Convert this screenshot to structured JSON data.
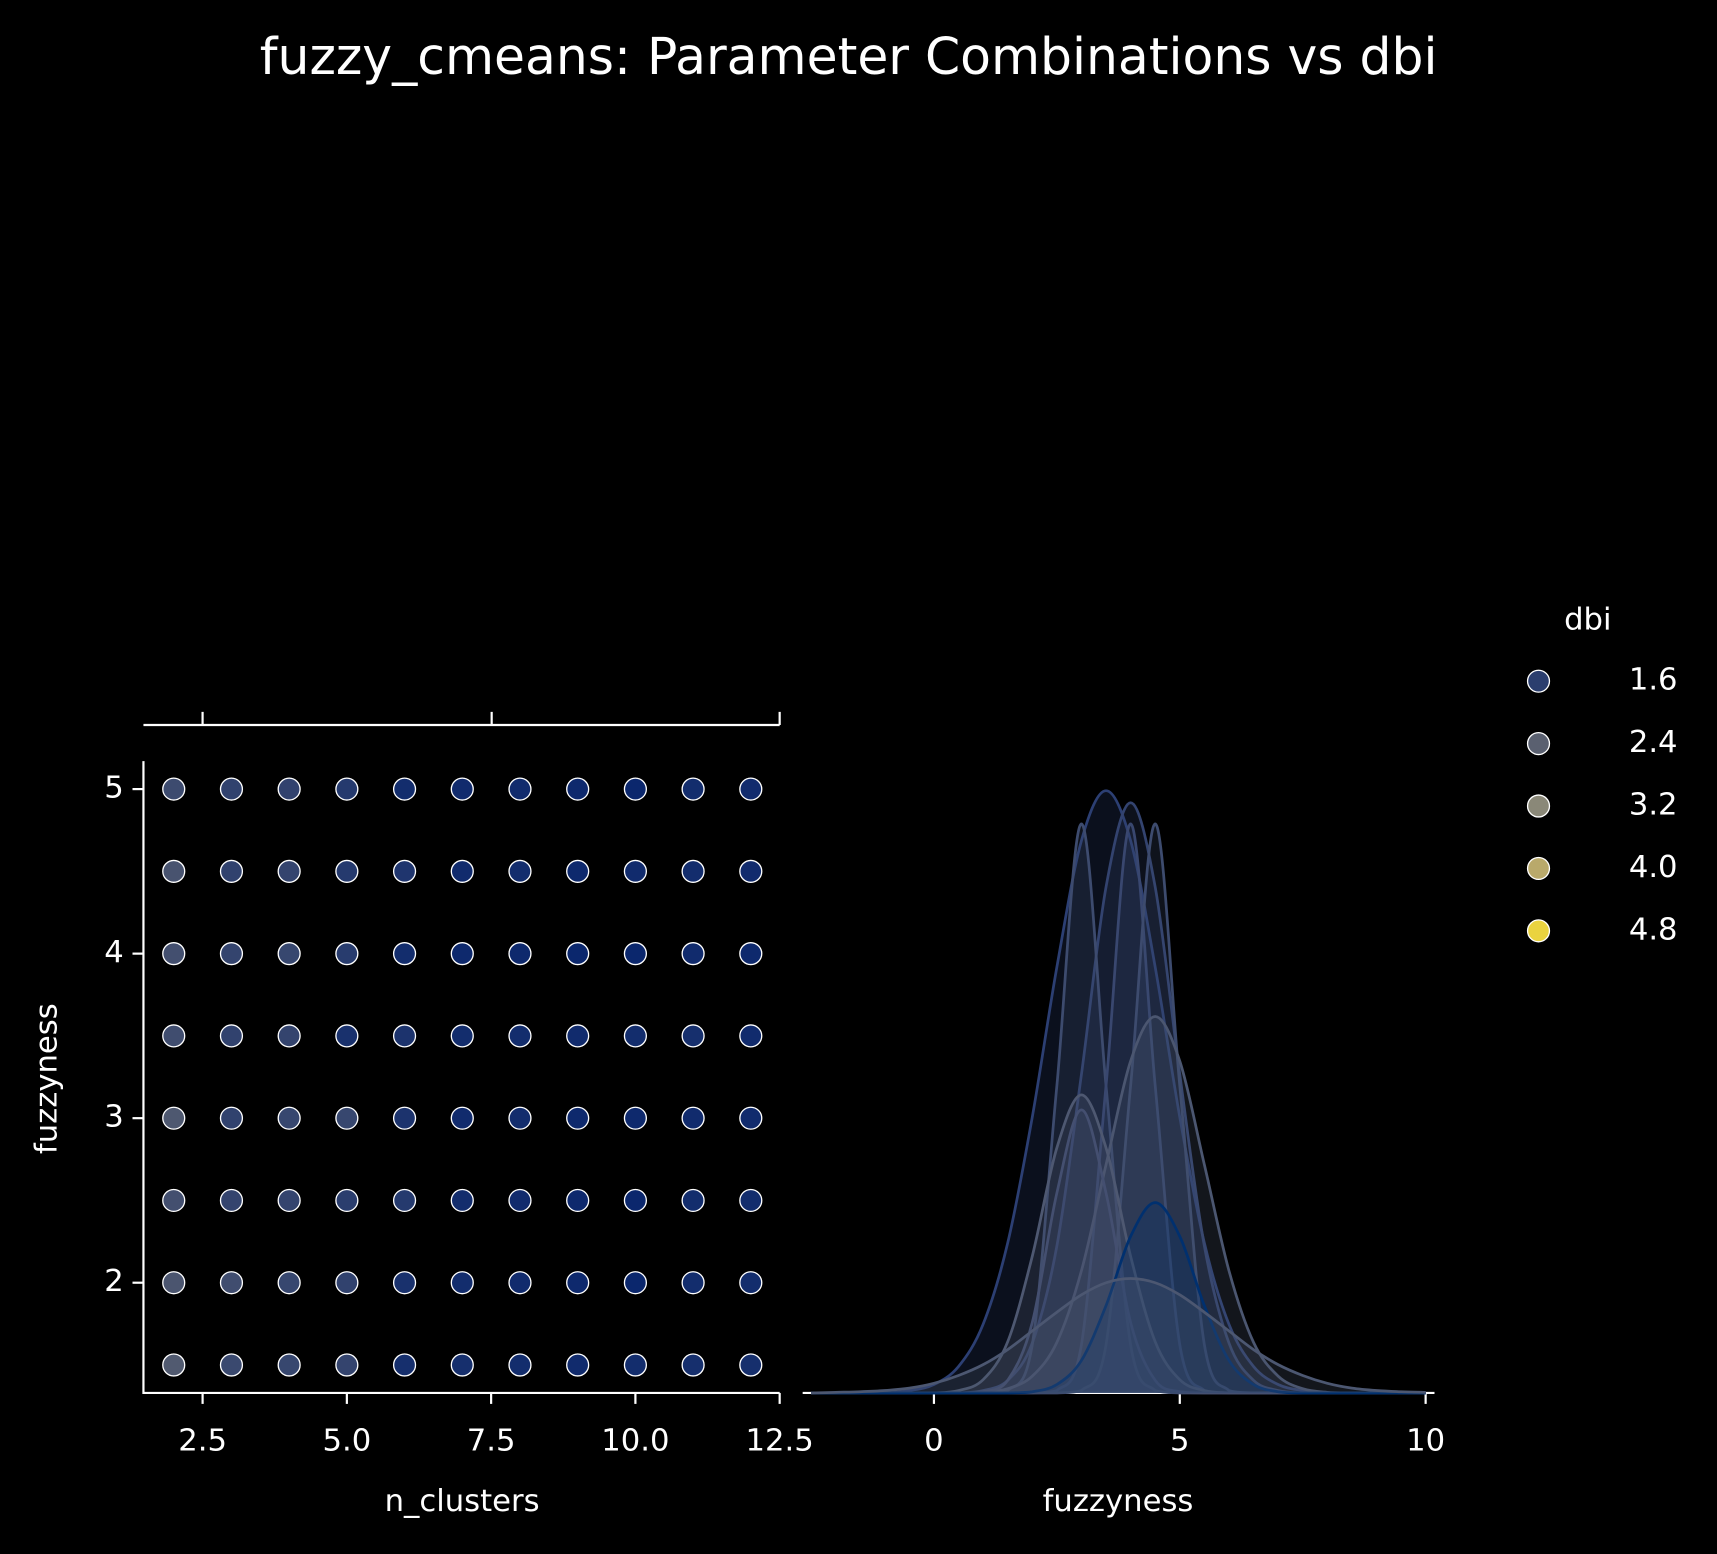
{
  "chart_data": [
    {
      "type": "scatter",
      "title": "fuzzy_cmeans: Parameter Combinations vs dbi",
      "x_label": "n_clusters",
      "y_label": "fuzzyness",
      "x": [
        2,
        3,
        4,
        5,
        6,
        7,
        8,
        9,
        10,
        11,
        12,
        2,
        3,
        4,
        5,
        6,
        7,
        8,
        9,
        10,
        11,
        12,
        2,
        3,
        4,
        5,
        6,
        7,
        8,
        9,
        10,
        11,
        12,
        2,
        3,
        4,
        5,
        6,
        7,
        8,
        9,
        10,
        11,
        12,
        2,
        3,
        4,
        5,
        6,
        7,
        8,
        9,
        10,
        11,
        12,
        2,
        3,
        4,
        5,
        6,
        7,
        8,
        9,
        10,
        11,
        12,
        2,
        3,
        4,
        5,
        6,
        7,
        8,
        9,
        10,
        11,
        12,
        2,
        3,
        4,
        5,
        6,
        7,
        8,
        9,
        10,
        11,
        12
      ],
      "y": [
        5,
        5,
        5,
        5,
        5,
        5,
        5,
        5,
        5,
        5,
        5,
        4.5,
        4.5,
        4.5,
        4.5,
        4.5,
        4.5,
        4.5,
        4.5,
        4.5,
        4.5,
        4.5,
        4,
        4,
        4,
        4,
        4,
        4,
        4,
        4,
        4,
        4,
        4,
        3.5,
        3.5,
        3.5,
        3.5,
        3.5,
        3.5,
        3.5,
        3.5,
        3.5,
        3.5,
        3.5,
        3,
        3,
        3,
        3,
        3,
        3,
        3,
        3,
        3,
        3,
        3,
        2.5,
        2.5,
        2.5,
        2.5,
        2.5,
        2.5,
        2.5,
        2.5,
        2.5,
        2.5,
        2.5,
        2,
        2,
        2,
        2,
        2,
        2,
        2,
        2,
        2,
        2,
        2,
        1.5,
        1.5,
        1.5,
        1.5,
        1.5,
        1.5,
        1.5,
        1.5,
        1.5,
        1.5,
        1.5
      ],
      "hue": [
        1.9,
        1.7,
        1.7,
        1.5,
        1.2,
        1.15,
        1.15,
        1.1,
        1.05,
        1.2,
        1.15,
        2.1,
        1.7,
        1.75,
        1.5,
        1.4,
        1.15,
        1.2,
        1.1,
        1.15,
        1.2,
        1.15,
        2.0,
        1.75,
        1.8,
        1.55,
        1.2,
        1.1,
        1.1,
        1.05,
        1.05,
        1.15,
        1.1,
        1.95,
        1.7,
        1.75,
        1.3,
        1.35,
        1.2,
        1.2,
        1.15,
        1.2,
        1.25,
        1.15,
        2.2,
        1.7,
        1.8,
        1.8,
        1.35,
        1.15,
        1.2,
        1.1,
        1.1,
        1.15,
        1.15,
        2.0,
        1.75,
        1.75,
        1.6,
        1.5,
        1.2,
        1.15,
        1.1,
        1.05,
        1.2,
        1.2,
        2.15,
        1.95,
        1.8,
        1.7,
        1.3,
        1.2,
        1.15,
        1.1,
        1.05,
        1.2,
        1.2,
        2.25,
        1.85,
        1.8,
        1.75,
        1.25,
        1.25,
        1.2,
        1.15,
        1.2,
        1.25,
        1.25
      ],
      "xlim": [
        1.475,
        12.5
      ],
      "ylim": [
        1.33,
        5.17
      ],
      "xticks": [
        2.5,
        {
          "value": 5,
          "label": "5.0"
        },
        7.5,
        {
          "value": 10,
          "label": "10.0"
        },
        12.5
      ],
      "yticks": [
        2,
        3,
        4,
        5
      ],
      "point_stroke": "#ffffff",
      "legend": {
        "title": "dbi",
        "position": "right",
        "entries": [
          {
            "value": 1.6,
            "color": "#2b3e6e"
          },
          {
            "value": 2.4,
            "color": "#5a6070"
          },
          {
            "value": 3.2,
            "color": "#8a8878"
          },
          {
            "value": 4,
            "label": "4.0",
            "color": "#b9a96b"
          },
          {
            "value": 4.8,
            "color": "#ead33f"
          }
        ]
      }
    },
    {
      "type": "kde",
      "x_label": "fuzzyness",
      "x": [
        -2.5,
        -2,
        -1.5,
        -1,
        -0.5,
        0,
        0.5,
        1,
        1.5,
        2,
        2.5,
        3,
        3.5,
        4,
        4.5,
        5,
        5.5,
        6,
        6.5,
        7,
        7.5,
        8,
        8.5,
        9,
        9.5,
        10
      ],
      "xlim": [
        -2.67,
        10.18
      ],
      "ylim": [
        0,
        1
      ],
      "xticks": [
        0,
        5,
        10
      ],
      "curves": [
        {
          "color": "#2c3f73",
          "values": [
            0,
            0,
            0,
            0,
            0.004,
            0.014,
            0.044,
            0.114,
            0.249,
            0.458,
            0.707,
            0.917,
            1,
            0.917,
            0.707,
            0.458,
            0.249,
            0.114,
            0.044,
            0.014,
            0.004,
            0,
            0,
            0,
            0,
            0
          ]
        },
        {
          "color": "#33436f",
          "values": [
            0,
            0,
            0,
            0,
            0,
            0,
            0,
            0.004,
            0.021,
            0.083,
            0.244,
            0.529,
            0.84,
            0.98,
            0.84,
            0.529,
            0.244,
            0.083,
            0.021,
            0.004,
            0,
            0,
            0,
            0,
            0,
            0
          ]
        },
        {
          "color": "#3d4b6e",
          "values": [
            0,
            0,
            0,
            0,
            0,
            0,
            0,
            0,
            0.004,
            0.08,
            0.51,
            0.945,
            0.51,
            0.08,
            0.004,
            0,
            0,
            0,
            0,
            0,
            0,
            0,
            0,
            0,
            0,
            0
          ]
        },
        {
          "color": "#39476f",
          "values": [
            0,
            0,
            0,
            0,
            0,
            0,
            0,
            0,
            0,
            0,
            0.004,
            0.08,
            0.51,
            0.945,
            0.51,
            0.08,
            0.004,
            0,
            0,
            0,
            0,
            0,
            0,
            0,
            0,
            0
          ]
        },
        {
          "color": "#3d4b6e",
          "values": [
            0,
            0,
            0,
            0,
            0,
            0,
            0,
            0,
            0,
            0,
            0,
            0.004,
            0.08,
            0.51,
            0.945,
            0.51,
            0.08,
            0.004,
            0,
            0,
            0,
            0,
            0,
            0,
            0,
            0
          ]
        },
        {
          "color": "#4b5670",
          "values": [
            0,
            0,
            0,
            0,
            0,
            0,
            0,
            0.001,
            0.007,
            0.028,
            0.084,
            0.203,
            0.379,
            0.551,
            0.625,
            0.551,
            0.379,
            0.203,
            0.084,
            0.028,
            0.007,
            0.001,
            0,
            0,
            0,
            0
          ]
        },
        {
          "color": "#4e5871",
          "values": [
            0,
            0,
            0,
            0,
            0,
            0,
            0.004,
            0.022,
            0.085,
            0.227,
            0.407,
            0.495,
            0.407,
            0.227,
            0.085,
            0.022,
            0.004,
            0,
            0,
            0,
            0,
            0,
            0,
            0,
            0,
            0
          ]
        },
        {
          "color": "#444f70",
          "values": [
            0,
            0,
            0,
            0,
            0,
            0,
            0,
            0.002,
            0.021,
            0.117,
            0.332,
            0.47,
            0.332,
            0.117,
            0.021,
            0.002,
            0,
            0,
            0,
            0,
            0,
            0,
            0,
            0,
            0,
            0
          ]
        },
        {
          "color": "#00306f",
          "values": [
            0,
            0,
            0,
            0,
            0,
            0,
            0,
            0,
            0,
            0.002,
            0.014,
            0.054,
            0.145,
            0.26,
            0.316,
            0.26,
            0.145,
            0.054,
            0.014,
            0.002,
            0,
            0,
            0,
            0,
            0,
            0
          ]
        },
        {
          "color": "#4c5771",
          "values": [
            0,
            0.001,
            0.002,
            0.004,
            0.008,
            0.016,
            0.029,
            0.047,
            0.072,
            0.103,
            0.134,
            0.163,
            0.183,
            0.19,
            0.183,
            0.163,
            0.134,
            0.103,
            0.072,
            0.047,
            0.029,
            0.016,
            0.008,
            0.004,
            0.002,
            0.001
          ]
        }
      ]
    }
  ]
}
